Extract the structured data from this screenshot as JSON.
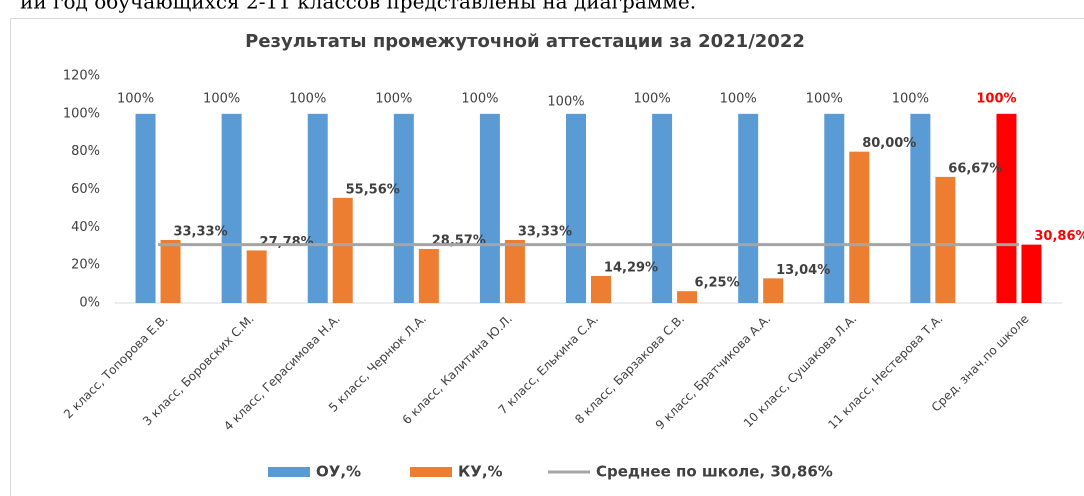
{
  "caption": "ий год обучающихся 2-11 классов представлены на диаграмме.",
  "chart_data": {
    "type": "bar",
    "title": "Результаты промежуточной аттестации за 2021/2022",
    "categories": [
      "2 класс, Топорова Е.В.",
      "3 класс, Боровских С.М.",
      "4 класс, Герасимова Н.А.",
      "5 класс, Чернюк Л.А.",
      "6 класс, Калитина Ю.Л.",
      "7 класс, Елькина С.А.",
      "8 класс, Барзакова С.В.",
      "9 класс, Братчикова А.А.",
      "10 класс, Сушакова Л.А.",
      "11 класс, Нестерова Т.А.",
      "Сред. знач.по школе"
    ],
    "series": [
      {
        "name": "ОУ,%",
        "color": "#5b9bd5",
        "colors": [
          "#5b9bd5",
          "#5b9bd5",
          "#5b9bd5",
          "#5b9bd5",
          "#5b9bd5",
          "#5b9bd5",
          "#5b9bd5",
          "#5b9bd5",
          "#5b9bd5",
          "#5b9bd5",
          "#ff0000"
        ],
        "values": [
          100,
          100,
          100,
          100,
          100,
          100,
          100,
          100,
          100,
          100,
          100
        ],
        "value_labels": [
          "100%",
          "100%",
          "100%",
          "100%",
          "100%",
          "100%",
          "100%",
          "100%",
          "100%",
          "100%",
          "100%"
        ]
      },
      {
        "name": "КУ,%",
        "color": "#ed7d31",
        "colors": [
          "#ed7d31",
          "#ed7d31",
          "#ed7d31",
          "#ed7d31",
          "#ed7d31",
          "#ed7d31",
          "#ed7d31",
          "#ed7d31",
          "#ed7d31",
          "#ed7d31",
          "#ff0000"
        ],
        "values": [
          33.33,
          27.78,
          55.56,
          28.57,
          33.33,
          14.29,
          6.25,
          13.04,
          80,
          66.67,
          30.86
        ],
        "value_labels": [
          "33,33%",
          "27,78%",
          "55,56%",
          "28,57%",
          "33,33%",
          "14,29%",
          "6,25%",
          "13,04%",
          "80,00%",
          "66,67%",
          "30,86%"
        ]
      },
      {
        "name": "Среднее по школе, 30,86%",
        "type": "line",
        "color": "#a5a5a5",
        "values": [
          30.86,
          30.86,
          30.86,
          30.86,
          30.86,
          30.86,
          30.86,
          30.86,
          30.86,
          30.86,
          30.86
        ]
      }
    ],
    "ylim": [
      0,
      120
    ],
    "yticks": [
      {
        "value": 0,
        "label": "0%"
      },
      {
        "value": 20,
        "label": "20%"
      },
      {
        "value": 40,
        "label": "40%"
      },
      {
        "value": 60,
        "label": "60%"
      },
      {
        "value": 80,
        "label": "80%"
      },
      {
        "value": 100,
        "label": "100%"
      },
      {
        "value": 120,
        "label": "120%"
      }
    ],
    "grid": false,
    "legend": "bottom"
  }
}
